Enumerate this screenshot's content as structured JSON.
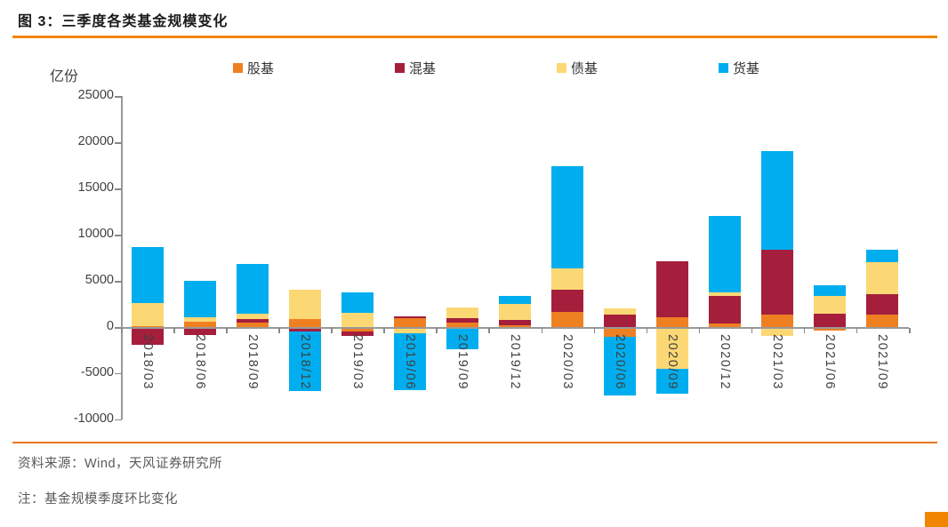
{
  "header": {
    "title": "图 3：三季度各类基金规模变化"
  },
  "footer": {
    "source": "资料来源：Wind，天风证券研究所",
    "note": "注：基金规模季度环比变化"
  },
  "colors": {
    "accent_orange": "#F28500",
    "stock": "#EF8022",
    "mixed": "#A51E3C",
    "bond": "#FCD874",
    "money": "#00AEEF"
  },
  "chart_data": {
    "type": "bar",
    "stacked": true,
    "title": "三季度各类基金规模变化",
    "unit_label": "亿份",
    "ylabel": "亿份",
    "xlabel": "",
    "ylim": [
      -10000,
      25000
    ],
    "ytick_step": 5000,
    "grid": false,
    "legend_position": "top",
    "categories": [
      "2018/03",
      "2018/06",
      "2018/09",
      "2018/12",
      "2019/03",
      "2019/06",
      "2019/09",
      "2019/12",
      "2020/03",
      "2020/06",
      "2020/09",
      "2020/12",
      "2021/03",
      "2021/06",
      "2021/09"
    ],
    "series": [
      {
        "name": "股基",
        "color": "#EF8022",
        "values": [
          100,
          580,
          440,
          830,
          -500,
          950,
          480,
          220,
          1600,
          -1100,
          1060,
          390,
          1380,
          -400,
          1350
        ]
      },
      {
        "name": "混基",
        "color": "#A51E3C",
        "values": [
          -1930,
          -850,
          390,
          -480,
          -450,
          250,
          490,
          580,
          2410,
          1380,
          6100,
          2990,
          6970,
          1450,
          2250
        ]
      },
      {
        "name": "债基",
        "color": "#FCD874",
        "values": [
          2460,
          480,
          615,
          3220,
          1540,
          -700,
          1120,
          1670,
          2310,
          610,
          -4500,
          410,
          -1000,
          1930,
          3470
        ]
      },
      {
        "name": "货基",
        "color": "#00AEEF",
        "values": [
          6060,
          3900,
          5390,
          -6430,
          2260,
          -6150,
          -2450,
          900,
          11080,
          -6290,
          -2730,
          8260,
          10700,
          1100,
          1350
        ]
      }
    ]
  }
}
